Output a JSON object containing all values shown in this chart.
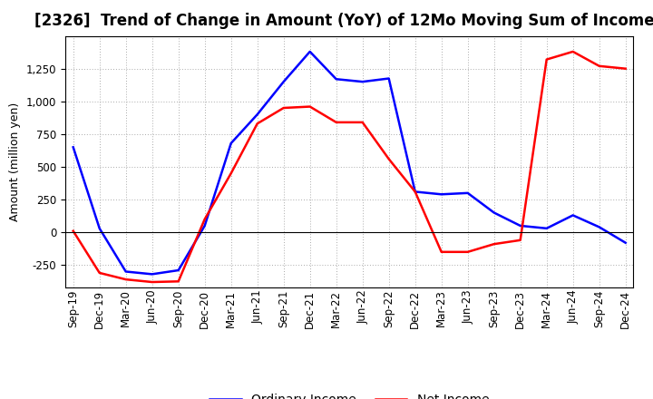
{
  "title": "[2326]  Trend of Change in Amount (YoY) of 12Mo Moving Sum of Incomes",
  "ylabel": "Amount (million yen)",
  "x_labels": [
    "Sep-19",
    "Dec-19",
    "Mar-20",
    "Jun-20",
    "Sep-20",
    "Dec-20",
    "Mar-21",
    "Jun-21",
    "Sep-21",
    "Dec-21",
    "Mar-22",
    "Jun-22",
    "Sep-22",
    "Dec-22",
    "Mar-23",
    "Jun-23",
    "Sep-23",
    "Dec-23",
    "Mar-24",
    "Jun-24",
    "Sep-24",
    "Dec-24"
  ],
  "ordinary_income": [
    650,
    30,
    -300,
    -320,
    -290,
    50,
    680,
    900,
    1150,
    1380,
    1170,
    1150,
    1175,
    310,
    290,
    300,
    150,
    50,
    30,
    130,
    40,
    -80
  ],
  "net_income": [
    10,
    -310,
    -360,
    -380,
    -375,
    100,
    450,
    830,
    950,
    960,
    840,
    840,
    560,
    310,
    -150,
    -150,
    -90,
    -60,
    1320,
    1380,
    1270,
    1250
  ],
  "ordinary_color": "#0000ff",
  "net_color": "#ff0000",
  "ylim_min": -420,
  "ylim_max": 1500,
  "yticks": [
    -250,
    0,
    250,
    500,
    750,
    1000,
    1250
  ],
  "background_color": "#ffffff",
  "grid_color": "#aaaaaa",
  "title_fontsize": 12,
  "axis_fontsize": 9,
  "tick_fontsize": 8.5,
  "legend_fontsize": 10
}
